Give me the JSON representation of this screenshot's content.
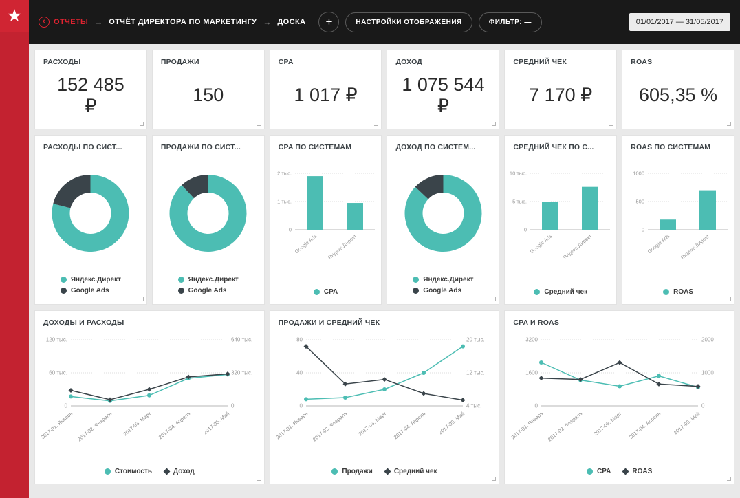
{
  "colors": {
    "accent_red": "#c32230",
    "teal": "#4cbdb3",
    "dark": "#3a444a",
    "header_bg": "#191919"
  },
  "header": {
    "breadcrumb": [
      {
        "label": "ОТЧЕТЫ"
      },
      {
        "label": "ОТЧЁТ ДИРЕКТОРА ПО МАРКЕТИНГУ"
      },
      {
        "label": "ДОСКА"
      }
    ],
    "separator": "→",
    "add_button": "+",
    "display_settings_button": "НАСТРОЙКИ ОТОБРАЖЕНИЯ",
    "filter_button": "ФИЛЬТР: —",
    "date_range": "01/01/2017 — 31/05/2017"
  },
  "kpis": [
    {
      "title": "РАСХОДЫ",
      "value": "152 485\n₽"
    },
    {
      "title": "ПРОДАЖИ",
      "value": "150"
    },
    {
      "title": "CPA",
      "value": "1 017 ₽"
    },
    {
      "title": "ДОХОД",
      "value": "1 075 544\n₽"
    },
    {
      "title": "СРЕДНИЙ ЧЕК",
      "value": "7 170 ₽"
    },
    {
      "title": "ROAS",
      "value": "605,35 %"
    }
  ],
  "chart_data": [
    {
      "type": "pie",
      "title": "РАСХОДЫ ПО СИСТ...",
      "slices": [
        {
          "label": "Яндекс.Директ",
          "value": 79,
          "color": "#4cbdb3"
        },
        {
          "label": "Google Ads",
          "value": 21,
          "color": "#3a444a"
        }
      ]
    },
    {
      "type": "pie",
      "title": "ПРОДАЖИ ПО СИСТ...",
      "slices": [
        {
          "label": "Яндекс.Директ",
          "value": 88,
          "color": "#4cbdb3"
        },
        {
          "label": "Google Ads",
          "value": 12,
          "color": "#3a444a"
        }
      ]
    },
    {
      "type": "bar",
      "title": "CPA ПО СИСТЕМАМ",
      "color": "#4cbdb3",
      "categories": [
        "Google Ads",
        "Яндекс.Директ"
      ],
      "values": [
        1900,
        950
      ],
      "ymax": 2000,
      "yticks": [
        {
          "v": 0,
          "label": "0"
        },
        {
          "v": 1000,
          "label": "1 тыс."
        },
        {
          "v": 2000,
          "label": "2 тыс."
        }
      ],
      "legend": [
        {
          "label": "CPA",
          "color": "#4cbdb3"
        }
      ]
    },
    {
      "type": "pie",
      "title": "ДОХОД ПО СИСТЕМ...",
      "slices": [
        {
          "label": "Яндекс.Директ",
          "value": 87,
          "color": "#4cbdb3"
        },
        {
          "label": "Google Ads",
          "value": 13,
          "color": "#3a444a"
        }
      ]
    },
    {
      "type": "bar",
      "title": "СРЕДНИЙ ЧЕК ПО С...",
      "color": "#4cbdb3",
      "categories": [
        "Google Ads",
        "Яндекс.Директ"
      ],
      "values": [
        5000,
        7600
      ],
      "ymax": 10000,
      "yticks": [
        {
          "v": 0,
          "label": "0"
        },
        {
          "v": 5000,
          "label": "5 тыс."
        },
        {
          "v": 10000,
          "label": "10 тыс."
        }
      ],
      "legend": [
        {
          "label": "Средний чек",
          "color": "#4cbdb3"
        }
      ]
    },
    {
      "type": "bar",
      "title": "ROAS ПО СИСТЕМАМ",
      "color": "#4cbdb3",
      "categories": [
        "Google Ads",
        "Яндекс.Директ"
      ],
      "values": [
        180,
        700
      ],
      "ymax": 1000,
      "yticks": [
        {
          "v": 0,
          "label": "0"
        },
        {
          "v": 500,
          "label": "500"
        },
        {
          "v": 1000,
          "label": "1000"
        }
      ],
      "legend": [
        {
          "label": "ROAS",
          "color": "#4cbdb3"
        }
      ]
    },
    {
      "type": "line",
      "title": "ДОХОДЫ И РАСХОДЫ",
      "x": [
        "2017-01. Январь",
        "2017-02. Февраль",
        "2017-03. Март",
        "2017-04. Апрель",
        "2017-05. Май"
      ],
      "left": {
        "min": 0,
        "max": 120000,
        "ticks": [
          {
            "v": 0,
            "label": "0"
          },
          {
            "v": 60000,
            "label": "60 тыс."
          },
          {
            "v": 120000,
            "label": "120 тыс."
          }
        ]
      },
      "right": {
        "min": 0,
        "max": 640000,
        "ticks": [
          {
            "v": 0,
            "label": "0"
          },
          {
            "v": 320000,
            "label": "320 тыс."
          },
          {
            "v": 640000,
            "label": "640 тыс."
          }
        ]
      },
      "series": [
        {
          "name": "Стоимость",
          "axis": "left",
          "color": "#4cbdb3",
          "marker": "circle",
          "values": [
            17000,
            9000,
            19000,
            50000,
            57000
          ]
        },
        {
          "name": "Доход",
          "axis": "right",
          "color": "#3a444a",
          "marker": "diamond",
          "values": [
            150000,
            60000,
            160000,
            280000,
            310000
          ]
        }
      ]
    },
    {
      "type": "line",
      "title": "ПРОДАЖИ И СРЕДНИЙ ЧЕК",
      "x": [
        "2017-01. Январь",
        "2017-02. Февраль",
        "2017-03. Март",
        "2017-04. Апрель",
        "2017-05. Май"
      ],
      "left": {
        "min": 0,
        "max": 80,
        "ticks": [
          {
            "v": 0,
            "label": "0"
          },
          {
            "v": 40,
            "label": "40"
          },
          {
            "v": 80,
            "label": "80"
          }
        ]
      },
      "right": {
        "min": 4000,
        "max": 20000,
        "ticks": [
          {
            "v": 4000,
            "label": "4 тыс."
          },
          {
            "v": 12000,
            "label": "12 тыс."
          },
          {
            "v": 20000,
            "label": "20 тыс."
          }
        ]
      },
      "series": [
        {
          "name": "Продажи",
          "axis": "left",
          "color": "#4cbdb3",
          "marker": "circle",
          "values": [
            8,
            10,
            20,
            40,
            72
          ]
        },
        {
          "name": "Средний чек",
          "axis": "right",
          "color": "#3a444a",
          "marker": "diamond",
          "values": [
            18400,
            9300,
            10400,
            7000,
            5400
          ]
        }
      ]
    },
    {
      "type": "line",
      "title": "CPA И ROAS",
      "x": [
        "2017-01. Январь",
        "2017-02. Февраль",
        "2017-03. Март",
        "2017-04. Апрель",
        "2017-05. Май"
      ],
      "left": {
        "min": 0,
        "max": 3200,
        "ticks": [
          {
            "v": 0,
            "label": "0"
          },
          {
            "v": 1600,
            "label": "1600"
          },
          {
            "v": 3200,
            "label": "3200"
          }
        ]
      },
      "right": {
        "min": 0,
        "max": 2000,
        "ticks": [
          {
            "v": 0,
            "label": "0"
          },
          {
            "v": 1000,
            "label": "1000"
          },
          {
            "v": 2000,
            "label": "2000"
          }
        ]
      },
      "series": [
        {
          "name": "CPA",
          "axis": "left",
          "color": "#4cbdb3",
          "marker": "circle",
          "values": [
            2100,
            1250,
            950,
            1450,
            900
          ]
        },
        {
          "name": "ROAS",
          "axis": "right",
          "color": "#3a444a",
          "marker": "diamond",
          "values": [
            840,
            800,
            1310,
            660,
            590
          ]
        }
      ]
    }
  ]
}
